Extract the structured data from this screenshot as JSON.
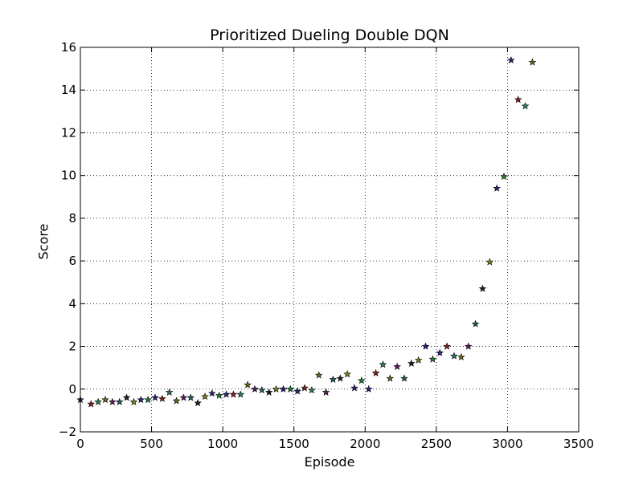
{
  "chart_data": {
    "type": "scatter",
    "title": "Prioritized Dueling Double DQN",
    "xlabel": "Episode",
    "ylabel": "Score",
    "xlim": [
      0,
      3500
    ],
    "ylim": [
      -2,
      16
    ],
    "xticks": [
      0,
      500,
      1000,
      1500,
      2000,
      2500,
      3000,
      3500
    ],
    "yticks": [
      -2,
      0,
      2,
      4,
      6,
      8,
      10,
      12,
      14,
      16
    ],
    "xtick_labels": [
      "0",
      "500",
      "1000",
      "1500",
      "2000",
      "2500",
      "3000",
      "3500"
    ],
    "ytick_labels": [
      "−2",
      "0",
      "2",
      "4",
      "6",
      "8",
      "10",
      "12",
      "14",
      "16"
    ],
    "grid": true,
    "marker": "star",
    "marker_colors": [
      "#2a2a80",
      "#8a2020",
      "#2a8060",
      "#6a6a20",
      "#602060",
      "#206060",
      "#202020",
      "#808020",
      "#302080",
      "#208030"
    ],
    "x": [
      0,
      75,
      125,
      175,
      225,
      275,
      325,
      375,
      425,
      475,
      525,
      575,
      625,
      675,
      725,
      775,
      825,
      875,
      925,
      975,
      1025,
      1075,
      1125,
      1175,
      1225,
      1275,
      1325,
      1375,
      1425,
      1475,
      1525,
      1575,
      1625,
      1675,
      1725,
      1775,
      1825,
      1875,
      1925,
      1975,
      2025,
      2075,
      2125,
      2175,
      2225,
      2275,
      2325,
      2375,
      2425,
      2475,
      2525,
      2575,
      2625,
      2675,
      2725,
      2775,
      2825,
      2875,
      2925,
      2975,
      3025,
      3075,
      3125,
      3175
    ],
    "y": [
      -0.5,
      -0.7,
      -0.6,
      -0.5,
      -0.6,
      -0.6,
      -0.4,
      -0.6,
      -0.5,
      -0.5,
      -0.4,
      -0.45,
      -0.15,
      -0.55,
      -0.4,
      -0.4,
      -0.65,
      -0.35,
      -0.2,
      -0.3,
      -0.25,
      -0.25,
      -0.25,
      0.2,
      0.0,
      -0.05,
      -0.15,
      0.0,
      0.0,
      0.0,
      -0.1,
      0.05,
      -0.05,
      0.65,
      -0.15,
      0.45,
      0.5,
      0.7,
      0.05,
      0.4,
      0.0,
      0.75,
      1.15,
      0.5,
      1.05,
      0.5,
      1.2,
      1.35,
      2.0,
      1.4,
      1.7,
      2.0,
      1.55,
      1.5,
      2.0,
      3.05,
      4.7,
      5.95,
      9.4,
      9.95,
      15.4,
      13.55,
      13.25,
      15.3
    ]
  }
}
